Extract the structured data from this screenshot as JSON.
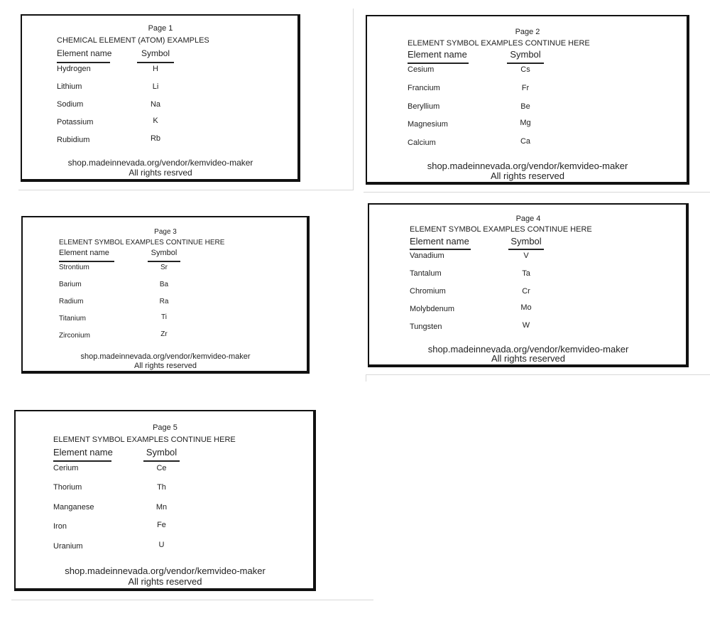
{
  "pages": [
    {
      "page_label": "Page 1",
      "title": "CHEMICAL ELEMENT (ATOM) EXAMPLES",
      "headers": {
        "name": "Element name",
        "symbol": "Symbol"
      },
      "rows": [
        {
          "name": "Hydrogen",
          "symbol": "H"
        },
        {
          "name": "Lithium",
          "symbol": "Li"
        },
        {
          "name": "Sodium",
          "symbol": "Na"
        },
        {
          "name": "Potassium",
          "symbol": "K"
        },
        {
          "name": "Rubidium",
          "symbol": "Rb"
        }
      ],
      "footer_url": "shop.madeinnevada.org/vendor/kemvideo-maker",
      "footer_rights": "All rights resrved"
    },
    {
      "page_label": "Page 2",
      "title": "ELEMENT SYMBOL EXAMPLES CONTINUE HERE",
      "headers": {
        "name": "Element name",
        "symbol": "Symbol"
      },
      "rows": [
        {
          "name": "Cesium",
          "symbol": "Cs"
        },
        {
          "name": "Francium",
          "symbol": "Fr"
        },
        {
          "name": "Beryllium",
          "symbol": "Be"
        },
        {
          "name": "Magnesium",
          "symbol": "Mg"
        },
        {
          "name": "Calcium",
          "symbol": "Ca"
        }
      ],
      "footer_url": "shop.madeinnevada.org/vendor/kemvideo-maker",
      "footer_rights": "All rights reserved"
    },
    {
      "page_label": "Page 3",
      "title": "ELEMENT SYMBOL EXAMPLES CONTINUE HERE",
      "headers": {
        "name": "Element name",
        "symbol": "Symbol"
      },
      "rows": [
        {
          "name": "Strontium",
          "symbol": "Sr"
        },
        {
          "name": "Barium",
          "symbol": "Ba"
        },
        {
          "name": "Radium",
          "symbol": "Ra"
        },
        {
          "name": "Titanium",
          "symbol": "Ti"
        },
        {
          "name": "Zirconium",
          "symbol": "Zr"
        }
      ],
      "footer_url": "shop.madeinnevada.org/vendor/kemvideo-maker",
      "footer_rights": "All rights reserved"
    },
    {
      "page_label": "Page 4",
      "title": "ELEMENT SYMBOL EXAMPLES CONTINUE HERE",
      "headers": {
        "name": "Element name",
        "symbol": "Symbol"
      },
      "rows": [
        {
          "name": "Vanadium",
          "symbol": "V"
        },
        {
          "name": "Tantalum",
          "symbol": "Ta"
        },
        {
          "name": "Chromium",
          "symbol": "Cr"
        },
        {
          "name": "Molybdenum",
          "symbol": "Mo"
        },
        {
          "name": "Tungsten",
          "symbol": "W"
        }
      ],
      "footer_url": "shop.madeinnevada.org/vendor/kemvideo-maker",
      "footer_rights": "All rights reserved"
    },
    {
      "page_label": "Page 5",
      "title": "ELEMENT SYMBOL EXAMPLES CONTINUE HERE",
      "headers": {
        "name": "Element name",
        "symbol": "Symbol"
      },
      "rows": [
        {
          "name": "Cerium",
          "symbol": "Ce"
        },
        {
          "name": "Thorium",
          "symbol": "Th"
        },
        {
          "name": "Manganese",
          "symbol": "Mn"
        },
        {
          "name": "Iron",
          "symbol": "Fe"
        },
        {
          "name": "Uranium",
          "symbol": "U"
        }
      ],
      "footer_url": "shop.madeinnevada.org/vendor/kemvideo-maker",
      "footer_rights": "All rights reserved"
    }
  ]
}
